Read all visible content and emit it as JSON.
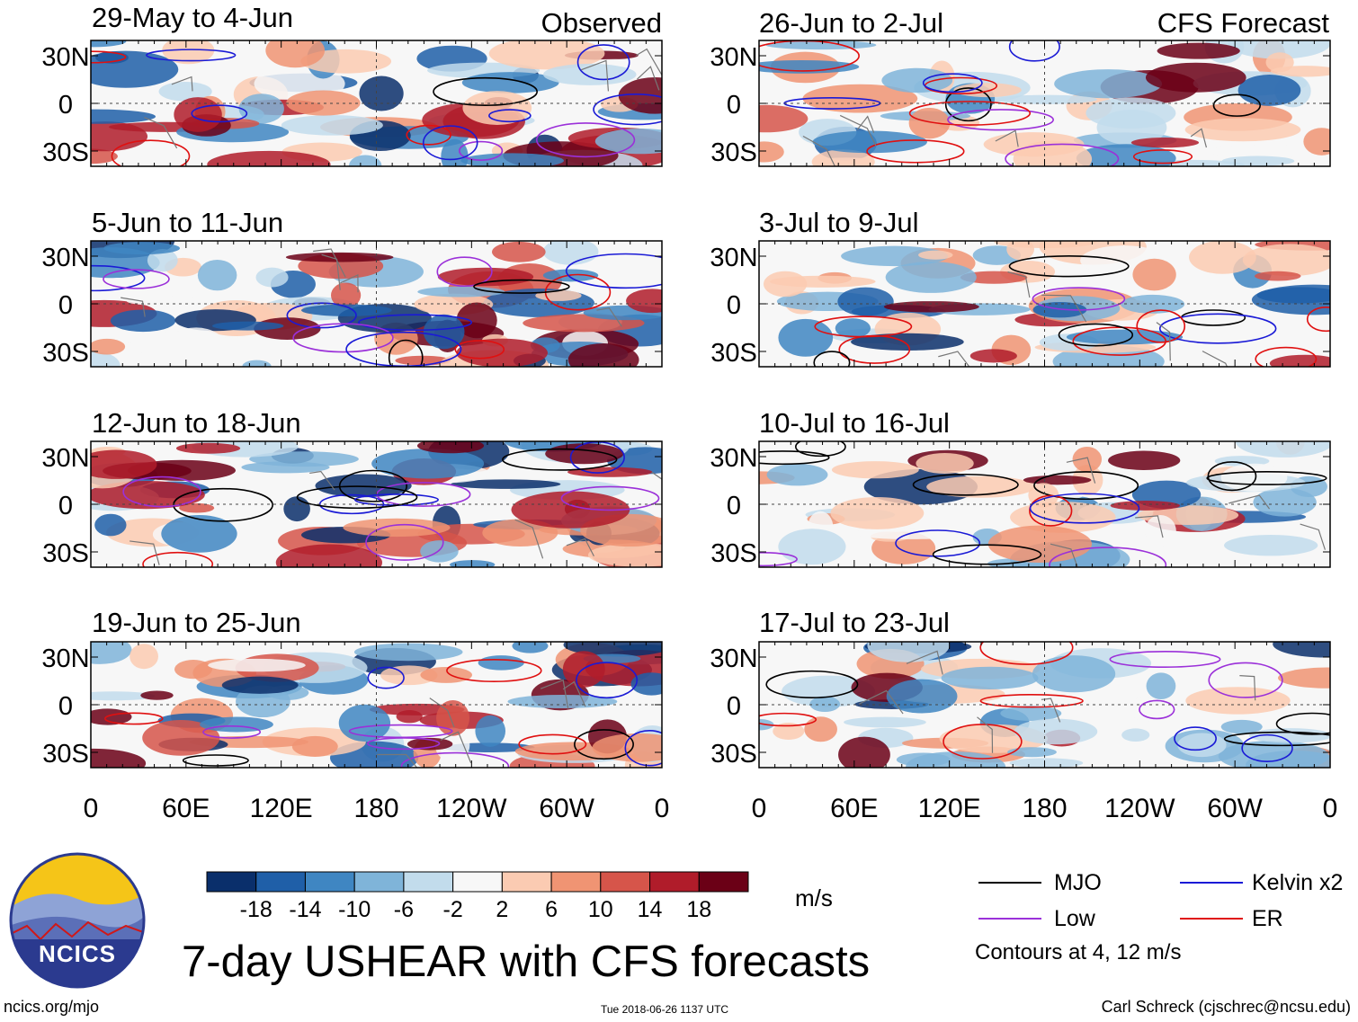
{
  "chart_data": [
    {
      "type": "heatmap",
      "column": "observed",
      "title": "29-May to 4-Jun",
      "label": "Observed"
    },
    {
      "type": "heatmap",
      "column": "observed",
      "title": "5-Jun to 11-Jun",
      "label": ""
    },
    {
      "type": "heatmap",
      "column": "observed",
      "title": "12-Jun to 18-Jun",
      "label": ""
    },
    {
      "type": "heatmap",
      "column": "observed",
      "title": "19-Jun to 25-Jun",
      "label": ""
    },
    {
      "type": "heatmap",
      "column": "forecast",
      "title": "26-Jun to 2-Jul",
      "label": "CFS Forecast"
    },
    {
      "type": "heatmap",
      "column": "forecast",
      "title": "3-Jul to 9-Jul",
      "label": ""
    },
    {
      "type": "heatmap",
      "column": "forecast",
      "title": "10-Jul to 16-Jul",
      "label": ""
    },
    {
      "type": "heatmap",
      "column": "forecast",
      "title": "17-Jul to 23-Jul",
      "label": ""
    }
  ],
  "axes": {
    "x_ticks": [
      "0",
      "60E",
      "120E",
      "180",
      "120W",
      "60W",
      "0"
    ],
    "y_ticks": [
      "30N",
      "0",
      "30S"
    ]
  },
  "colorbar": {
    "labels": [
      "-18",
      "-14",
      "-10",
      "-6",
      "-2",
      "2",
      "6",
      "10",
      "14",
      "18"
    ],
    "colors": [
      "#0a2f6b",
      "#1f5fa8",
      "#3f86c2",
      "#7fb4d9",
      "#c2dcec",
      "#f7f7f7",
      "#fbcbb2",
      "#f09473",
      "#d6554a",
      "#b01c2a",
      "#6b0016"
    ],
    "units": "m/s"
  },
  "legend": {
    "mjo": {
      "label": "MJO",
      "color": "#000000"
    },
    "low": {
      "label": "Low",
      "color": "#9b30d9"
    },
    "kelvin": {
      "label": "Kelvin x2",
      "color": "#1a1ad6"
    },
    "er": {
      "label": "ER",
      "color": "#e01010"
    },
    "note": "Contours at 4, 12 m/s"
  },
  "title": "7-day USHEAR with CFS forecasts",
  "logo": "NCICS",
  "footer": {
    "left": "ncics.org/mjo",
    "center": "Tue 2018-06-26 1137 UTC",
    "right": "Carl Schreck (cjschrec@ncsu.edu)"
  }
}
